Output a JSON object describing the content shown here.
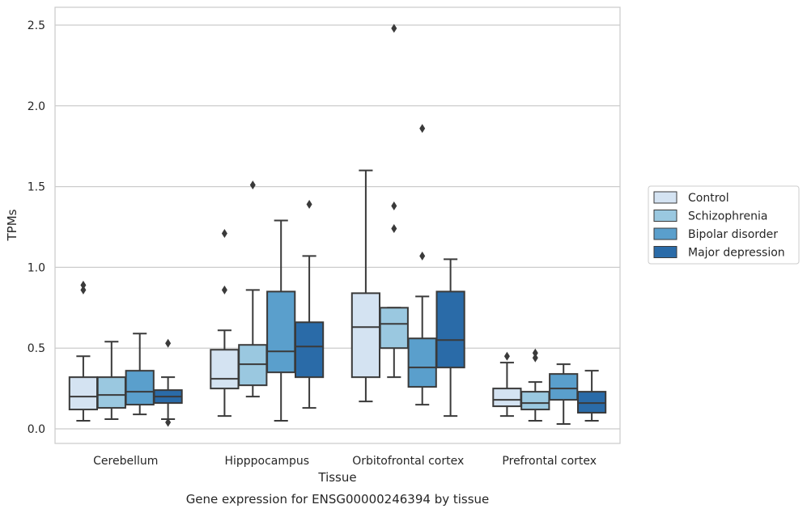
{
  "chart_data": {
    "type": "boxplot",
    "caption": "Gene expression for ENSG00000246394 by tissue",
    "xlabel": "Tissue",
    "ylabel": "TPMs",
    "ylim": [
      -0.09,
      2.61
    ],
    "yticks": [
      "0.0",
      "0.5",
      "1.0",
      "1.5",
      "2.0",
      "2.5"
    ],
    "grid": "horizontal",
    "legend_position": "right",
    "categories": [
      "Cerebellum",
      "Hipppocampus",
      "Orbitofrontal cortex",
      "Prefrontal cortex"
    ],
    "series": [
      {
        "name": "Control",
        "color": "#d4e3f2",
        "boxes": [
          {
            "whislo": 0.05,
            "q1": 0.12,
            "med": 0.2,
            "q3": 0.32,
            "whishi": 0.45,
            "fliers": [
              0.86,
              0.89
            ]
          },
          {
            "whislo": 0.08,
            "q1": 0.25,
            "med": 0.31,
            "q3": 0.49,
            "whishi": 0.61,
            "fliers": [
              0.86,
              1.21
            ]
          },
          {
            "whislo": 0.17,
            "q1": 0.32,
            "med": 0.63,
            "q3": 0.84,
            "whishi": 1.6,
            "fliers": []
          },
          {
            "whislo": 0.08,
            "q1": 0.14,
            "med": 0.18,
            "q3": 0.25,
            "whishi": 0.41,
            "fliers": [
              0.45
            ]
          }
        ]
      },
      {
        "name": "Schizophrenia",
        "color": "#9ac8e0",
        "boxes": [
          {
            "whislo": 0.06,
            "q1": 0.13,
            "med": 0.21,
            "q3": 0.32,
            "whishi": 0.54,
            "fliers": []
          },
          {
            "whislo": 0.2,
            "q1": 0.27,
            "med": 0.4,
            "q3": 0.52,
            "whishi": 0.86,
            "fliers": [
              1.51
            ]
          },
          {
            "whislo": 0.32,
            "q1": 0.5,
            "med": 0.65,
            "q3": 0.75,
            "whishi": 0.75,
            "fliers": [
              1.24,
              1.38,
              2.48
            ]
          },
          {
            "whislo": 0.05,
            "q1": 0.12,
            "med": 0.16,
            "q3": 0.23,
            "whishi": 0.29,
            "fliers": [
              0.44,
              0.47
            ]
          }
        ]
      },
      {
        "name": "Bipolar disorder",
        "color": "#5a9fcc",
        "boxes": [
          {
            "whislo": 0.09,
            "q1": 0.15,
            "med": 0.23,
            "q3": 0.36,
            "whishi": 0.59,
            "fliers": []
          },
          {
            "whislo": 0.05,
            "q1": 0.35,
            "med": 0.48,
            "q3": 0.85,
            "whishi": 1.29,
            "fliers": []
          },
          {
            "whislo": 0.15,
            "q1": 0.26,
            "med": 0.38,
            "q3": 0.56,
            "whishi": 0.82,
            "fliers": [
              1.07,
              1.86
            ]
          },
          {
            "whislo": 0.03,
            "q1": 0.18,
            "med": 0.25,
            "q3": 0.34,
            "whishi": 0.4,
            "fliers": []
          }
        ]
      },
      {
        "name": "Major depression",
        "color": "#2a6ba8",
        "boxes": [
          {
            "whislo": 0.06,
            "q1": 0.16,
            "med": 0.2,
            "q3": 0.24,
            "whishi": 0.32,
            "fliers": [
              0.04,
              0.53
            ]
          },
          {
            "whislo": 0.13,
            "q1": 0.32,
            "med": 0.51,
            "q3": 0.66,
            "whishi": 1.07,
            "fliers": [
              1.39
            ]
          },
          {
            "whislo": 0.08,
            "q1": 0.38,
            "med": 0.55,
            "q3": 0.85,
            "whishi": 1.05,
            "fliers": []
          },
          {
            "whislo": 0.05,
            "q1": 0.1,
            "med": 0.16,
            "q3": 0.23,
            "whishi": 0.36,
            "fliers": []
          }
        ]
      }
    ]
  }
}
